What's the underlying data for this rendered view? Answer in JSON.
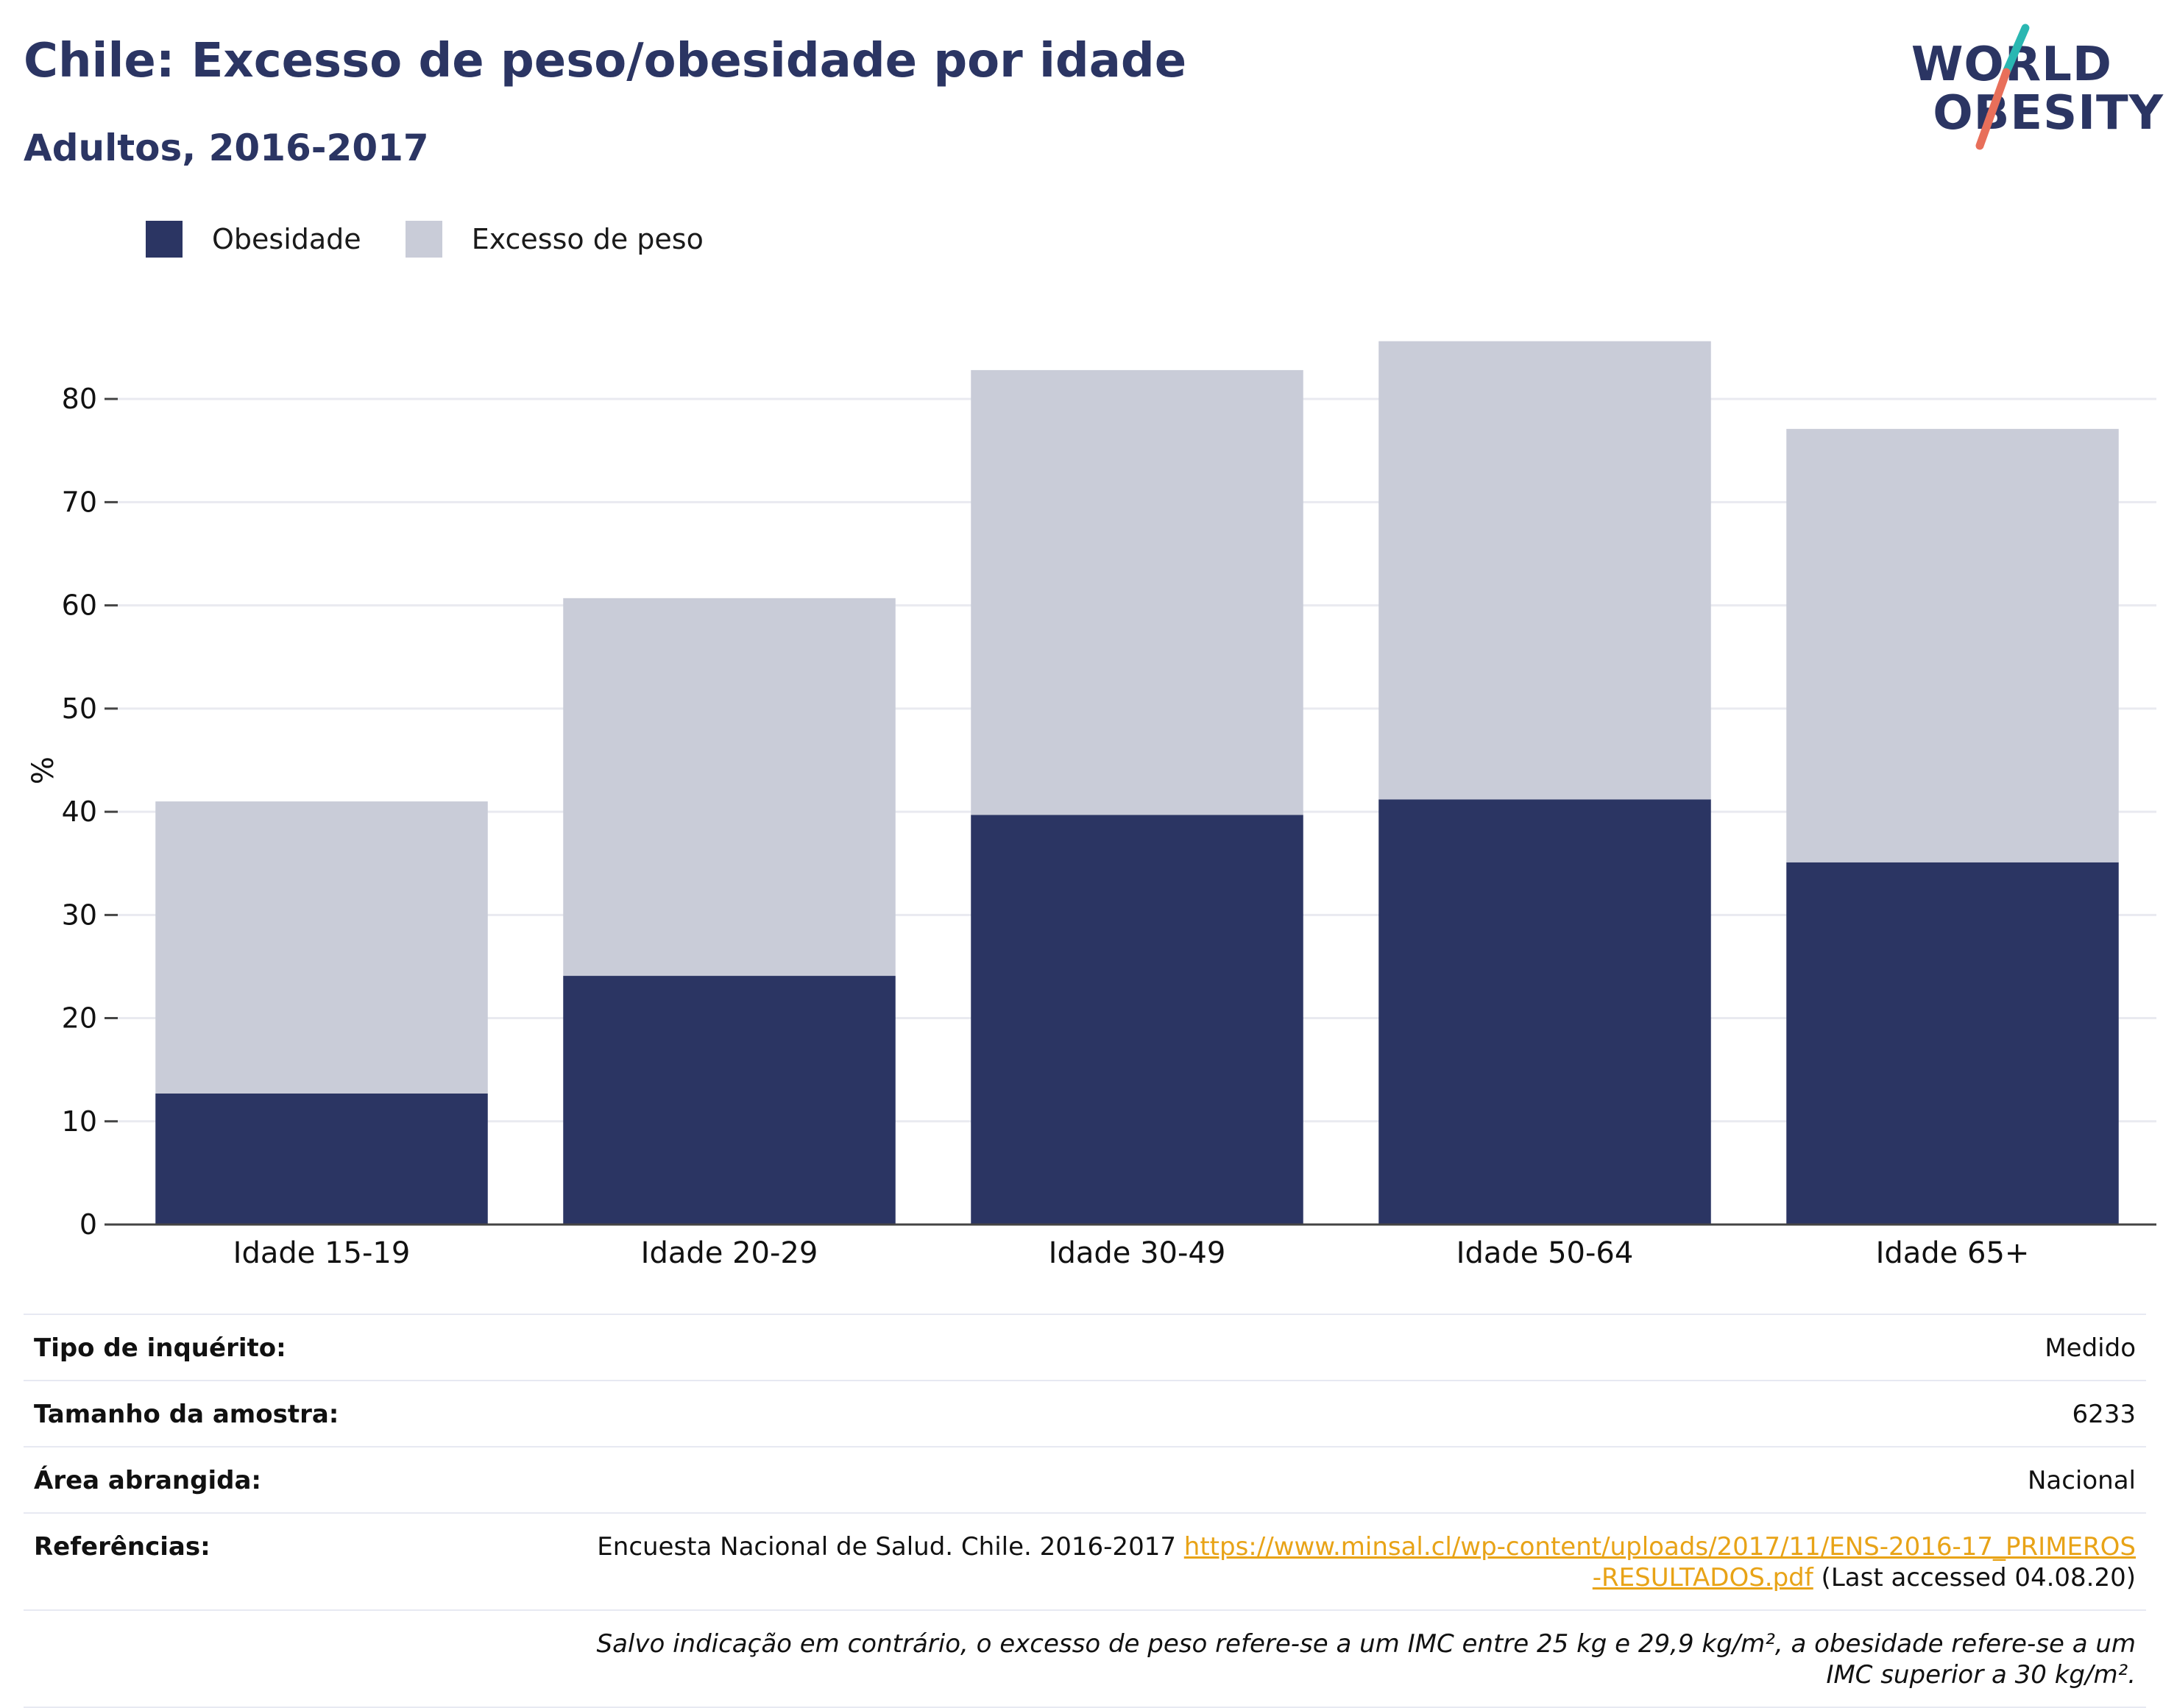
{
  "header": {
    "title": "Chile: Excesso de peso/obesidade por idade",
    "subtitle": "Adultos, 2016-2017"
  },
  "logo": {
    "line1": "WORLD",
    "line2": "OBESITY"
  },
  "colors": {
    "obesity": "#2b3563",
    "overweight": "#c9ccd8",
    "title": "#2b3563",
    "link": "#e8a317",
    "logo_slash_teal": "#2ab7b2",
    "logo_slash_coral": "#e86f5a"
  },
  "chart_data": {
    "type": "bar",
    "stacked": true,
    "categories": [
      "Idade 15-19",
      "Idade 20-29",
      "Idade 30-49",
      "Idade 50-64",
      "Idade 65+"
    ],
    "series": [
      {
        "name": "Obesidade",
        "values": [
          12.7,
          24.1,
          39.7,
          41.2,
          35.1
        ]
      },
      {
        "name": "Excesso de peso",
        "values": [
          28.3,
          36.6,
          43.1,
          44.4,
          42.0
        ]
      }
    ],
    "ylabel": "%",
    "xlabel": "",
    "ylim": [
      0,
      88
    ],
    "yticks": [
      0,
      10,
      20,
      30,
      40,
      50,
      60,
      70,
      80
    ],
    "grid": true,
    "legend_position": "top-left"
  },
  "info": {
    "survey_type": {
      "label": "Tipo de inquérito:",
      "value": "Medido"
    },
    "sample_size": {
      "label": "Tamanho da amostra:",
      "value": "6233"
    },
    "area": {
      "label": "Área abrangida:",
      "value": "Nacional"
    },
    "references": {
      "label": "Referências:",
      "text": "Encuesta Nacional de Salud. Chile. 2016-2017 ",
      "link": "https://www.minsal.cl/wp-content/uploads/2017/11/ENS-2016-17_PRIMEROS-RESULTADOS.pdf",
      "suffix": " (Last accessed 04.08.20)"
    },
    "note": "Salvo indicação em contrário, o excesso de peso refere-se a um IMC entre 25 kg e 29,9 kg/m², a obesidade refere-se a um IMC superior a 30 kg/m²."
  }
}
